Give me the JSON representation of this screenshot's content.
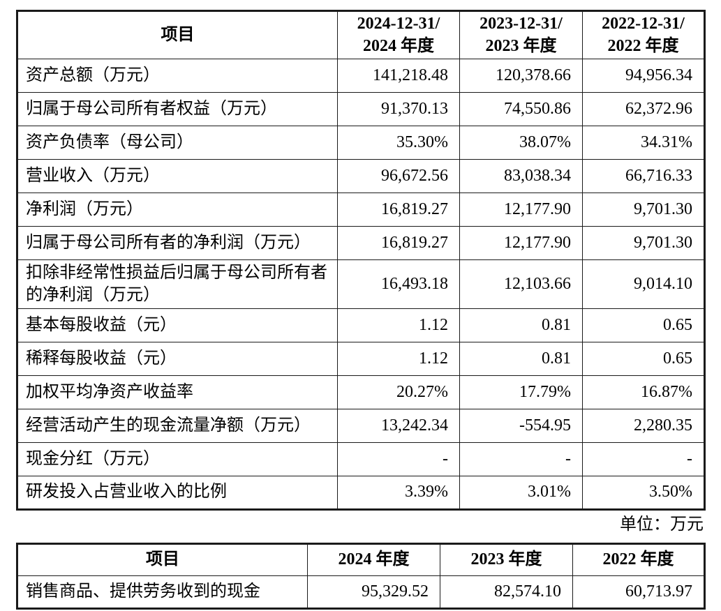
{
  "unit_note": "单位：万元",
  "table1": {
    "columns": [
      {
        "label": "项目"
      },
      {
        "line1": "2024-12-31/",
        "line2": "2024 年度"
      },
      {
        "line1": "2023-12-31/",
        "line2": "2023 年度"
      },
      {
        "line1": "2022-12-31/",
        "line2": "2022 年度"
      }
    ],
    "rows": [
      {
        "label": "资产总额（万元）",
        "values": [
          "141,218.48",
          "120,378.66",
          "94,956.34"
        ]
      },
      {
        "label": "归属于母公司所有者权益（万元）",
        "values": [
          "91,370.13",
          "74,550.86",
          "62,372.96"
        ]
      },
      {
        "label": "资产负债率（母公司）",
        "values": [
          "35.30%",
          "38.07%",
          "34.31%"
        ]
      },
      {
        "label": "营业收入（万元）",
        "values": [
          "96,672.56",
          "83,038.34",
          "66,716.33"
        ]
      },
      {
        "label": "净利润（万元）",
        "values": [
          "16,819.27",
          "12,177.90",
          "9,701.30"
        ]
      },
      {
        "label": "归属于母公司所有者的净利润（万元）",
        "values": [
          "16,819.27",
          "12,177.90",
          "9,701.30"
        ]
      },
      {
        "label": "扣除非经常性损益后归属于母公司所有者的净利润（万元）",
        "values": [
          "16,493.18",
          "12,103.66",
          "9,014.10"
        ]
      },
      {
        "label": "基本每股收益（元）",
        "values": [
          "1.12",
          "0.81",
          "0.65"
        ]
      },
      {
        "label": "稀释每股收益（元）",
        "values": [
          "1.12",
          "0.81",
          "0.65"
        ]
      },
      {
        "label": "加权平均净资产收益率",
        "values": [
          "20.27%",
          "17.79%",
          "16.87%"
        ]
      },
      {
        "label": "经营活动产生的现金流量净额（万元）",
        "values": [
          "13,242.34",
          "-554.95",
          "2,280.35"
        ]
      },
      {
        "label": "现金分红（万元）",
        "values": [
          "-",
          "-",
          "-"
        ]
      },
      {
        "label": "研发投入占营业收入的比例",
        "values": [
          "3.39%",
          "3.01%",
          "3.50%"
        ]
      }
    ]
  },
  "table2": {
    "columns": [
      "项目",
      "2024 年度",
      "2023 年度",
      "2022 年度"
    ],
    "rows": [
      {
        "label": "销售商品、提供劳务收到的现金",
        "values": [
          "95,329.52",
          "82,574.10",
          "60,713.97"
        ]
      }
    ]
  }
}
